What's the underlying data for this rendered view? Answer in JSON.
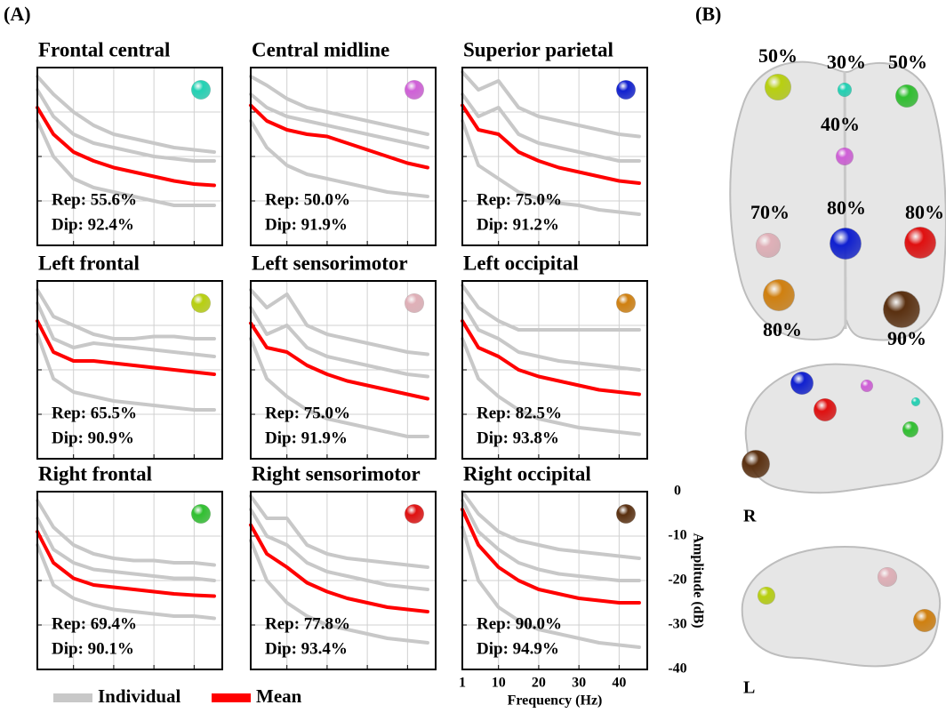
{
  "panel_labels": [
    "(A)",
    "(B)"
  ],
  "chart_data": [
    {
      "type": "line",
      "title": "Frontal central",
      "color": "#22d2b4",
      "annotations": [
        "Rep: 55.6%",
        "Dip: 92.4%"
      ],
      "x": [
        1,
        5,
        10,
        15,
        20,
        25,
        30,
        35,
        40,
        45
      ],
      "xlim": [
        1,
        47
      ],
      "ylim": [
        -40,
        0
      ],
      "xticks": [
        1,
        10,
        20,
        30,
        40
      ],
      "yticks": [
        0,
        -10,
        -20,
        -30,
        -40
      ],
      "grid": true,
      "tick_labels": false,
      "series": [
        {
          "name": "Individual",
          "color": "#c8c8c8",
          "curves": [
            [
              -2,
              -6,
              -10,
              -13,
              -15,
              -16,
              -17,
              -18,
              -18.5,
              -19
            ],
            [
              -5,
              -11,
              -15,
              -17,
              -18,
              -19,
              -20,
              -20.5,
              -21,
              -21
            ],
            [
              -12,
              -20,
              -25,
              -27,
              -28,
              -29,
              -30,
              -31,
              -31,
              -31
            ]
          ]
        },
        {
          "name": "Mean",
          "color": "#ff0000",
          "values": [
            -9,
            -15,
            -19,
            -21,
            -22.5,
            -23.5,
            -24.5,
            -25.5,
            -26.2,
            -26.5
          ]
        }
      ]
    },
    {
      "type": "line",
      "title": "Central midline",
      "color": "#d060d8",
      "annotations": [
        "Rep: 50.0%",
        "Dip: 91.9%"
      ],
      "x": [
        1,
        5,
        10,
        15,
        20,
        25,
        30,
        35,
        40,
        45
      ],
      "xlim": [
        1,
        47
      ],
      "ylim": [
        -40,
        0
      ],
      "xticks": [
        1,
        10,
        20,
        30,
        40
      ],
      "yticks": [
        0,
        -10,
        -20,
        -30,
        -40
      ],
      "grid": true,
      "tick_labels": false,
      "series": [
        {
          "name": "Individual",
          "color": "#c8c8c8",
          "curves": [
            [
              -2,
              -4,
              -7,
              -9,
              -10,
              -11,
              -12,
              -13,
              -14,
              -15
            ],
            [
              -6,
              -9,
              -11,
              -12,
              -13,
              -14,
              -15,
              -16,
              -17,
              -18
            ],
            [
              -12,
              -18,
              -22,
              -24,
              -25,
              -26,
              -27,
              -28,
              -28.5,
              -29
            ]
          ]
        },
        {
          "name": "Mean",
          "color": "#ff0000",
          "values": [
            -8.5,
            -12,
            -14,
            -15,
            -15.5,
            -17,
            -18.5,
            -20,
            -21.5,
            -22.5
          ]
        }
      ]
    },
    {
      "type": "line",
      "title": "Superior parietal",
      "color": "#1020d0",
      "annotations": [
        "Rep: 75.0%",
        "Dip: 91.2%"
      ],
      "x": [
        1,
        5,
        10,
        15,
        20,
        25,
        30,
        35,
        40,
        45
      ],
      "xlim": [
        1,
        47
      ],
      "ylim": [
        -40,
        0
      ],
      "xticks": [
        1,
        10,
        20,
        30,
        40
      ],
      "yticks": [
        0,
        -10,
        -20,
        -30,
        -40
      ],
      "grid": true,
      "tick_labels": false,
      "series": [
        {
          "name": "Individual",
          "color": "#c8c8c8",
          "curves": [
            [
              -1,
              -5,
              -3,
              -9,
              -11,
              -12,
              -13,
              -14,
              -15,
              -15.5
            ],
            [
              -6,
              -11,
              -9,
              -15,
              -17,
              -18,
              -19,
              -20,
              -21,
              -21
            ],
            [
              -12,
              -22,
              -25,
              -28,
              -29.5,
              -30.5,
              -31,
              -32,
              -32.5,
              -33
            ]
          ]
        },
        {
          "name": "Mean",
          "color": "#ff0000",
          "values": [
            -8.5,
            -14,
            -15,
            -19,
            -21,
            -22.5,
            -23.5,
            -24.5,
            -25.5,
            -26
          ]
        }
      ]
    },
    {
      "type": "line",
      "title": "Left frontal",
      "color": "#b8d010",
      "annotations": [
        "Rep: 65.5%",
        "Dip: 90.9%"
      ],
      "x": [
        1,
        5,
        10,
        15,
        20,
        25,
        30,
        35,
        40,
        45
      ],
      "xlim": [
        1,
        47
      ],
      "ylim": [
        -40,
        0
      ],
      "xticks": [
        1,
        10,
        20,
        30,
        40
      ],
      "yticks": [
        0,
        -10,
        -20,
        -30,
        -40
      ],
      "grid": true,
      "tick_labels": false,
      "series": [
        {
          "name": "Individual",
          "color": "#c8c8c8",
          "curves": [
            [
              -2,
              -8,
              -10,
              -12,
              -13,
              -13,
              -12.5,
              -12.5,
              -13,
              -13
            ],
            [
              -5,
              -13,
              -15,
              -14,
              -14.5,
              -15,
              -15.5,
              -16,
              -16.5,
              -17
            ],
            [
              -12,
              -22,
              -25,
              -26,
              -27,
              -27.5,
              -28,
              -28.5,
              -29,
              -29
            ]
          ]
        },
        {
          "name": "Mean",
          "color": "#ff0000",
          "values": [
            -9,
            -16,
            -18,
            -18,
            -18.5,
            -19,
            -19.5,
            -20,
            -20.5,
            -21
          ]
        }
      ]
    },
    {
      "type": "line",
      "title": "Left sensorimotor",
      "color": "#e0b0b8",
      "annotations": [
        "Rep: 75.0%",
        "Dip: 91.9%"
      ],
      "x": [
        1,
        5,
        10,
        15,
        20,
        25,
        30,
        35,
        40,
        45
      ],
      "xlim": [
        1,
        47
      ],
      "ylim": [
        -40,
        0
      ],
      "xticks": [
        1,
        10,
        20,
        30,
        40
      ],
      "yticks": [
        0,
        -10,
        -20,
        -30,
        -40
      ],
      "grid": true,
      "tick_labels": false,
      "series": [
        {
          "name": "Individual",
          "color": "#c8c8c8",
          "curves": [
            [
              -2,
              -6,
              -3,
              -10,
              -12,
              -13,
              -14,
              -15,
              -16,
              -16.5
            ],
            [
              -6,
              -12,
              -10,
              -15,
              -17,
              -18,
              -19,
              -20,
              -21,
              -21.5
            ],
            [
              -13,
              -22,
              -26,
              -29,
              -31,
              -32,
              -33,
              -34,
              -35,
              -35
            ]
          ]
        },
        {
          "name": "Mean",
          "color": "#ff0000",
          "values": [
            -9.5,
            -15,
            -16,
            -19,
            -21,
            -22.5,
            -23.5,
            -24.5,
            -25.5,
            -26.5
          ]
        }
      ]
    },
    {
      "type": "line",
      "title": "Left occipital",
      "color": "#d08010",
      "annotations": [
        "Rep: 82.5%",
        "Dip: 93.8%"
      ],
      "x": [
        1,
        5,
        10,
        15,
        20,
        25,
        30,
        35,
        40,
        45
      ],
      "xlim": [
        1,
        47
      ],
      "ylim": [
        -40,
        0
      ],
      "xticks": [
        1,
        10,
        20,
        30,
        40
      ],
      "yticks": [
        0,
        -10,
        -20,
        -30,
        -40
      ],
      "grid": true,
      "tick_labels": false,
      "series": [
        {
          "name": "Individual",
          "color": "#c8c8c8",
          "curves": [
            [
              -1,
              -6,
              -9,
              -11,
              -11,
              -11,
              -11,
              -11,
              -11,
              -11
            ],
            [
              -5,
              -11,
              -13,
              -16,
              -17,
              -18,
              -18.5,
              -19,
              -19.5,
              -20
            ],
            [
              -13,
              -22,
              -26,
              -29,
              -31,
              -32,
              -33,
              -33.5,
              -34,
              -34.5
            ]
          ]
        },
        {
          "name": "Mean",
          "color": "#ff0000",
          "values": [
            -9,
            -15,
            -17,
            -20,
            -21.5,
            -22.5,
            -23.5,
            -24.5,
            -25,
            -25.5
          ]
        }
      ]
    },
    {
      "type": "line",
      "title": "Right frontal",
      "color": "#30c030",
      "annotations": [
        "Rep: 69.4%",
        "Dip: 90.1%"
      ],
      "x": [
        1,
        5,
        10,
        15,
        20,
        25,
        30,
        35,
        40,
        45
      ],
      "xlim": [
        1,
        47
      ],
      "ylim": [
        -40,
        0
      ],
      "xticks": [
        1,
        10,
        20,
        30,
        40
      ],
      "yticks": [
        0,
        -10,
        -20,
        -30,
        -40
      ],
      "grid": true,
      "tick_labels": false,
      "series": [
        {
          "name": "Individual",
          "color": "#c8c8c8",
          "curves": [
            [
              -2,
              -8,
              -12,
              -14,
              -15,
              -15.5,
              -15.5,
              -16,
              -16,
              -16.5
            ],
            [
              -6,
              -13,
              -16,
              -17.5,
              -18,
              -18.5,
              -19,
              -19.5,
              -19.5,
              -20
            ],
            [
              -12,
              -21,
              -24,
              -25.5,
              -26.5,
              -27,
              -27.5,
              -28,
              -28,
              -28.5
            ]
          ]
        },
        {
          "name": "Mean",
          "color": "#ff0000",
          "values": [
            -9,
            -16,
            -19.5,
            -21,
            -21.5,
            -22,
            -22.5,
            -23,
            -23.3,
            -23.5
          ]
        }
      ]
    },
    {
      "type": "line",
      "title": "Right sensorimotor",
      "color": "#e01010",
      "annotations": [
        "Rep: 77.8%",
        "Dip: 93.4%"
      ],
      "x": [
        1,
        5,
        10,
        15,
        20,
        25,
        30,
        35,
        40,
        45
      ],
      "xlim": [
        1,
        47
      ],
      "ylim": [
        -40,
        0
      ],
      "xticks": [
        1,
        10,
        20,
        30,
        40
      ],
      "yticks": [
        0,
        -10,
        -20,
        -30,
        -40
      ],
      "grid": true,
      "tick_labels": false,
      "series": [
        {
          "name": "Individual",
          "color": "#c8c8c8",
          "curves": [
            [
              -1,
              -6,
              -6,
              -12,
              -14,
              -15,
              -15.5,
              -16,
              -16.5,
              -17
            ],
            [
              -4,
              -10,
              -12,
              -16,
              -18,
              -19,
              -20,
              -21,
              -21.5,
              -22
            ],
            [
              -11,
              -20,
              -25,
              -28,
              -30,
              -31,
              -32,
              -33,
              -33.5,
              -34
            ]
          ]
        },
        {
          "name": "Mean",
          "color": "#ff0000",
          "values": [
            -7.5,
            -14,
            -17,
            -20.5,
            -22.5,
            -24,
            -25,
            -26,
            -26.5,
            -27
          ]
        }
      ]
    },
    {
      "type": "line",
      "title": "Right occipital",
      "color": "#5a3010",
      "annotations": [
        "Rep: 90.0%",
        "Dip: 94.9%"
      ],
      "x": [
        1,
        5,
        10,
        15,
        20,
        25,
        30,
        35,
        40,
        45
      ],
      "xlim": [
        1,
        47
      ],
      "ylim": [
        -40,
        0
      ],
      "xticks": [
        1,
        10,
        20,
        30,
        40
      ],
      "yticks": [
        0,
        -10,
        -20,
        -30,
        -40
      ],
      "grid": true,
      "tick_labels": true,
      "xlabel": "Frequency (Hz)",
      "ylabel": "Amplitude (dB)",
      "series": [
        {
          "name": "Individual",
          "color": "#c8c8c8",
          "curves": [
            [
              0,
              -5,
              -9,
              -11,
              -12,
              -13,
              -13.5,
              -14,
              -14.5,
              -15
            ],
            [
              -2,
              -9,
              -13,
              -16,
              -17.5,
              -18.5,
              -19,
              -19.5,
              -20,
              -20
            ],
            [
              -8,
              -20,
              -26,
              -29,
              -31,
              -32,
              -33,
              -34,
              -34.5,
              -35
            ]
          ]
        },
        {
          "name": "Mean",
          "color": "#ff0000",
          "values": [
            -4,
            -12,
            -17,
            -20,
            -22,
            -23,
            -24,
            -24.5,
            -25,
            -25
          ]
        }
      ]
    }
  ],
  "brain": {
    "percents": [
      "50%",
      "30%",
      "50%",
      "40%",
      "70%",
      "80%",
      "80%",
      "80%",
      "90%"
    ],
    "views": [
      "R",
      "L"
    ]
  }
}
